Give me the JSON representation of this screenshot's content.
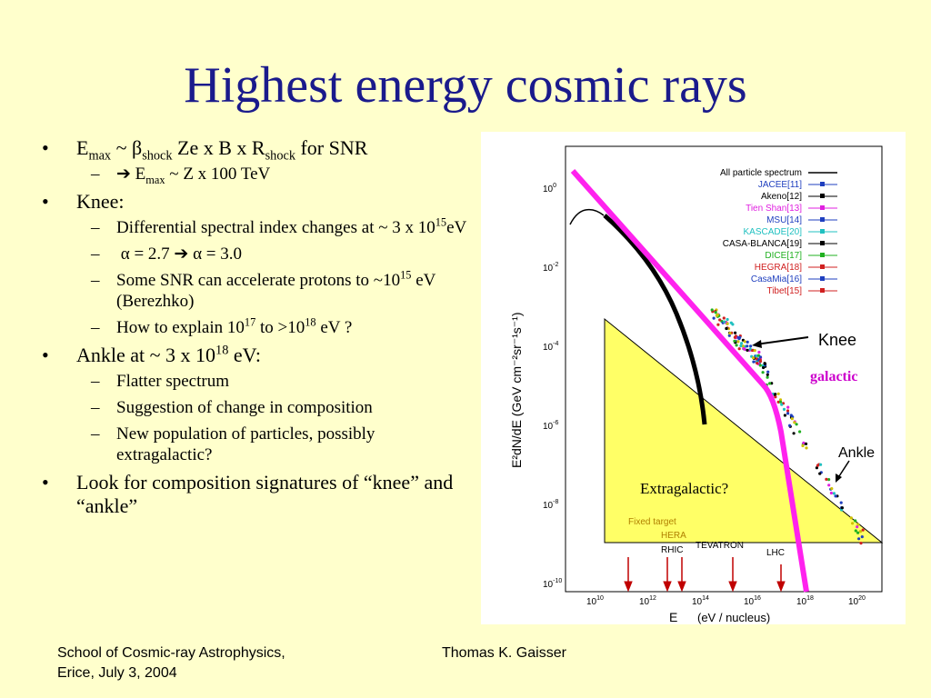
{
  "title": "Highest energy cosmic rays",
  "bullets": {
    "b1_E": "E",
    "b1_max": "max",
    "b1_tilde": " ~ ",
    "b1_beta": "β",
    "b1_shock": "shock",
    "b1_mid": " Ze x B x R",
    "b1_shock2": "shock",
    "b1_end": " for SNR",
    "b1s1_arrow": "➔ E",
    "b1s1_max": "max",
    "b1s1_end": " ~ Z x 100 TeV",
    "knee": "Knee:",
    "knee_s1": "Differential spectral index changes at ~ 3 x 10",
    "knee_s1_exp": "15",
    "knee_s1_end": "eV",
    "knee_s2": "α = 2.7 ➔ α = 3.0",
    "knee_s3": "Some SNR can accelerate protons to ~10",
    "knee_s3_exp": "15",
    "knee_s3_end": " eV (Berezhko)",
    "knee_s4": "How to explain 10",
    "knee_s4_exp1": "17",
    "knee_s4_mid": " to  >10",
    "knee_s4_exp2": "18",
    "knee_s4_end": " eV ?",
    "ankle": "Ankle at ~ 3 x 10",
    "ankle_exp": "18",
    "ankle_end": " eV:",
    "ankle_s1": "Flatter spectrum",
    "ankle_s2": "Suggestion of change in composition",
    "ankle_s3": "New population of particles, possibly extragalactic?",
    "look": "Look for composition signatures of “knee” and “ankle”"
  },
  "plot": {
    "legend": [
      {
        "label": "All particle spectrum",
        "color": "#000000"
      },
      {
        "label": "JACEE[11]",
        "color": "#1f3fbf"
      },
      {
        "label": "Akeno[12]",
        "color": "#000000"
      },
      {
        "label": "Tien Shan[13]",
        "color": "#e020e0"
      },
      {
        "label": "MSU[14]",
        "color": "#1f3fbf"
      },
      {
        "label": "KASCADE[20]",
        "color": "#20c0c0"
      },
      {
        "label": "CASA-BLANCA[19]",
        "color": "#000000"
      },
      {
        "label": "DICE[17]",
        "color": "#20b020"
      },
      {
        "label": "HEGRA[18]",
        "color": "#d02020"
      },
      {
        "label": "CasaMia[16]",
        "color": "#1f3fbf"
      },
      {
        "label": "Tibet[15]",
        "color": "#d02020"
      }
    ],
    "y_ticks": [
      {
        "base": "10",
        "exp": "0"
      },
      {
        "base": "10",
        "exp": "-2"
      },
      {
        "base": "10",
        "exp": "-4"
      },
      {
        "base": "10",
        "exp": "-6"
      },
      {
        "base": "10",
        "exp": "-8"
      },
      {
        "base": "10",
        "exp": "-10"
      }
    ],
    "x_ticks": [
      {
        "base": "10",
        "exp": "10"
      },
      {
        "base": "10",
        "exp": "12"
      },
      {
        "base": "10",
        "exp": "14"
      },
      {
        "base": "10",
        "exp": "16"
      },
      {
        "base": "10",
        "exp": "18"
      },
      {
        "base": "10",
        "exp": "20"
      }
    ],
    "ylabel": "E²dN/dE   (GeV cm⁻²sr⁻¹s⁻¹)",
    "xlabel_E": "E",
    "xlabel_unit": "(eV / nucleus)",
    "knee_label": "Knee",
    "galactic_label": "galactic",
    "ankle_label": "Ankle",
    "extragalactic_label": "Extragalactic?",
    "fixed_target": "Fixed target",
    "hera": "HERA",
    "tevatron": "TEVATRON",
    "rhic": "RHIC",
    "lhc": "LHC",
    "colors": {
      "magenta": "#ff22ee",
      "triangle": "#ffff66",
      "arrow": "#c00000",
      "galactic": "#cc00cc"
    }
  },
  "footer": {
    "left_line1": "School of Cosmic-ray Astrophysics,",
    "left_line2": "Erice, July 3, 2004",
    "center": "Thomas K. Gaisser"
  }
}
